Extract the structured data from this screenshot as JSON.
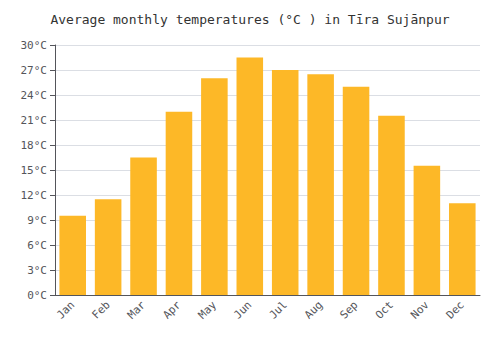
{
  "chart_data": {
    "type": "bar",
    "title": "Average monthly temperatures (°C ) in Tīra Sujānpur",
    "categories": [
      "Jan",
      "Feb",
      "Mar",
      "Apr",
      "May",
      "Jun",
      "Jul",
      "Aug",
      "Sep",
      "Oct",
      "Nov",
      "Dec"
    ],
    "values": [
      9.5,
      11.5,
      16.5,
      22.0,
      26.0,
      28.5,
      27.0,
      26.5,
      25.0,
      21.5,
      15.5,
      11.0
    ],
    "color": "#FDB827",
    "ylim": [
      0,
      30
    ],
    "yticks": [
      {
        "value": 0,
        "label": "0°C"
      },
      {
        "value": 3,
        "label": "3°C"
      },
      {
        "value": 6,
        "label": "6°C"
      },
      {
        "value": 9,
        "label": "9°C"
      },
      {
        "value": 12,
        "label": "12°C"
      },
      {
        "value": 15,
        "label": "15°C"
      },
      {
        "value": 18,
        "label": "18°C"
      },
      {
        "value": 21,
        "label": "21°C"
      },
      {
        "value": 24,
        "label": "24°C"
      },
      {
        "value": 27,
        "label": "27°C"
      },
      {
        "value": 30,
        "label": "30°C"
      }
    ],
    "grid": true
  }
}
